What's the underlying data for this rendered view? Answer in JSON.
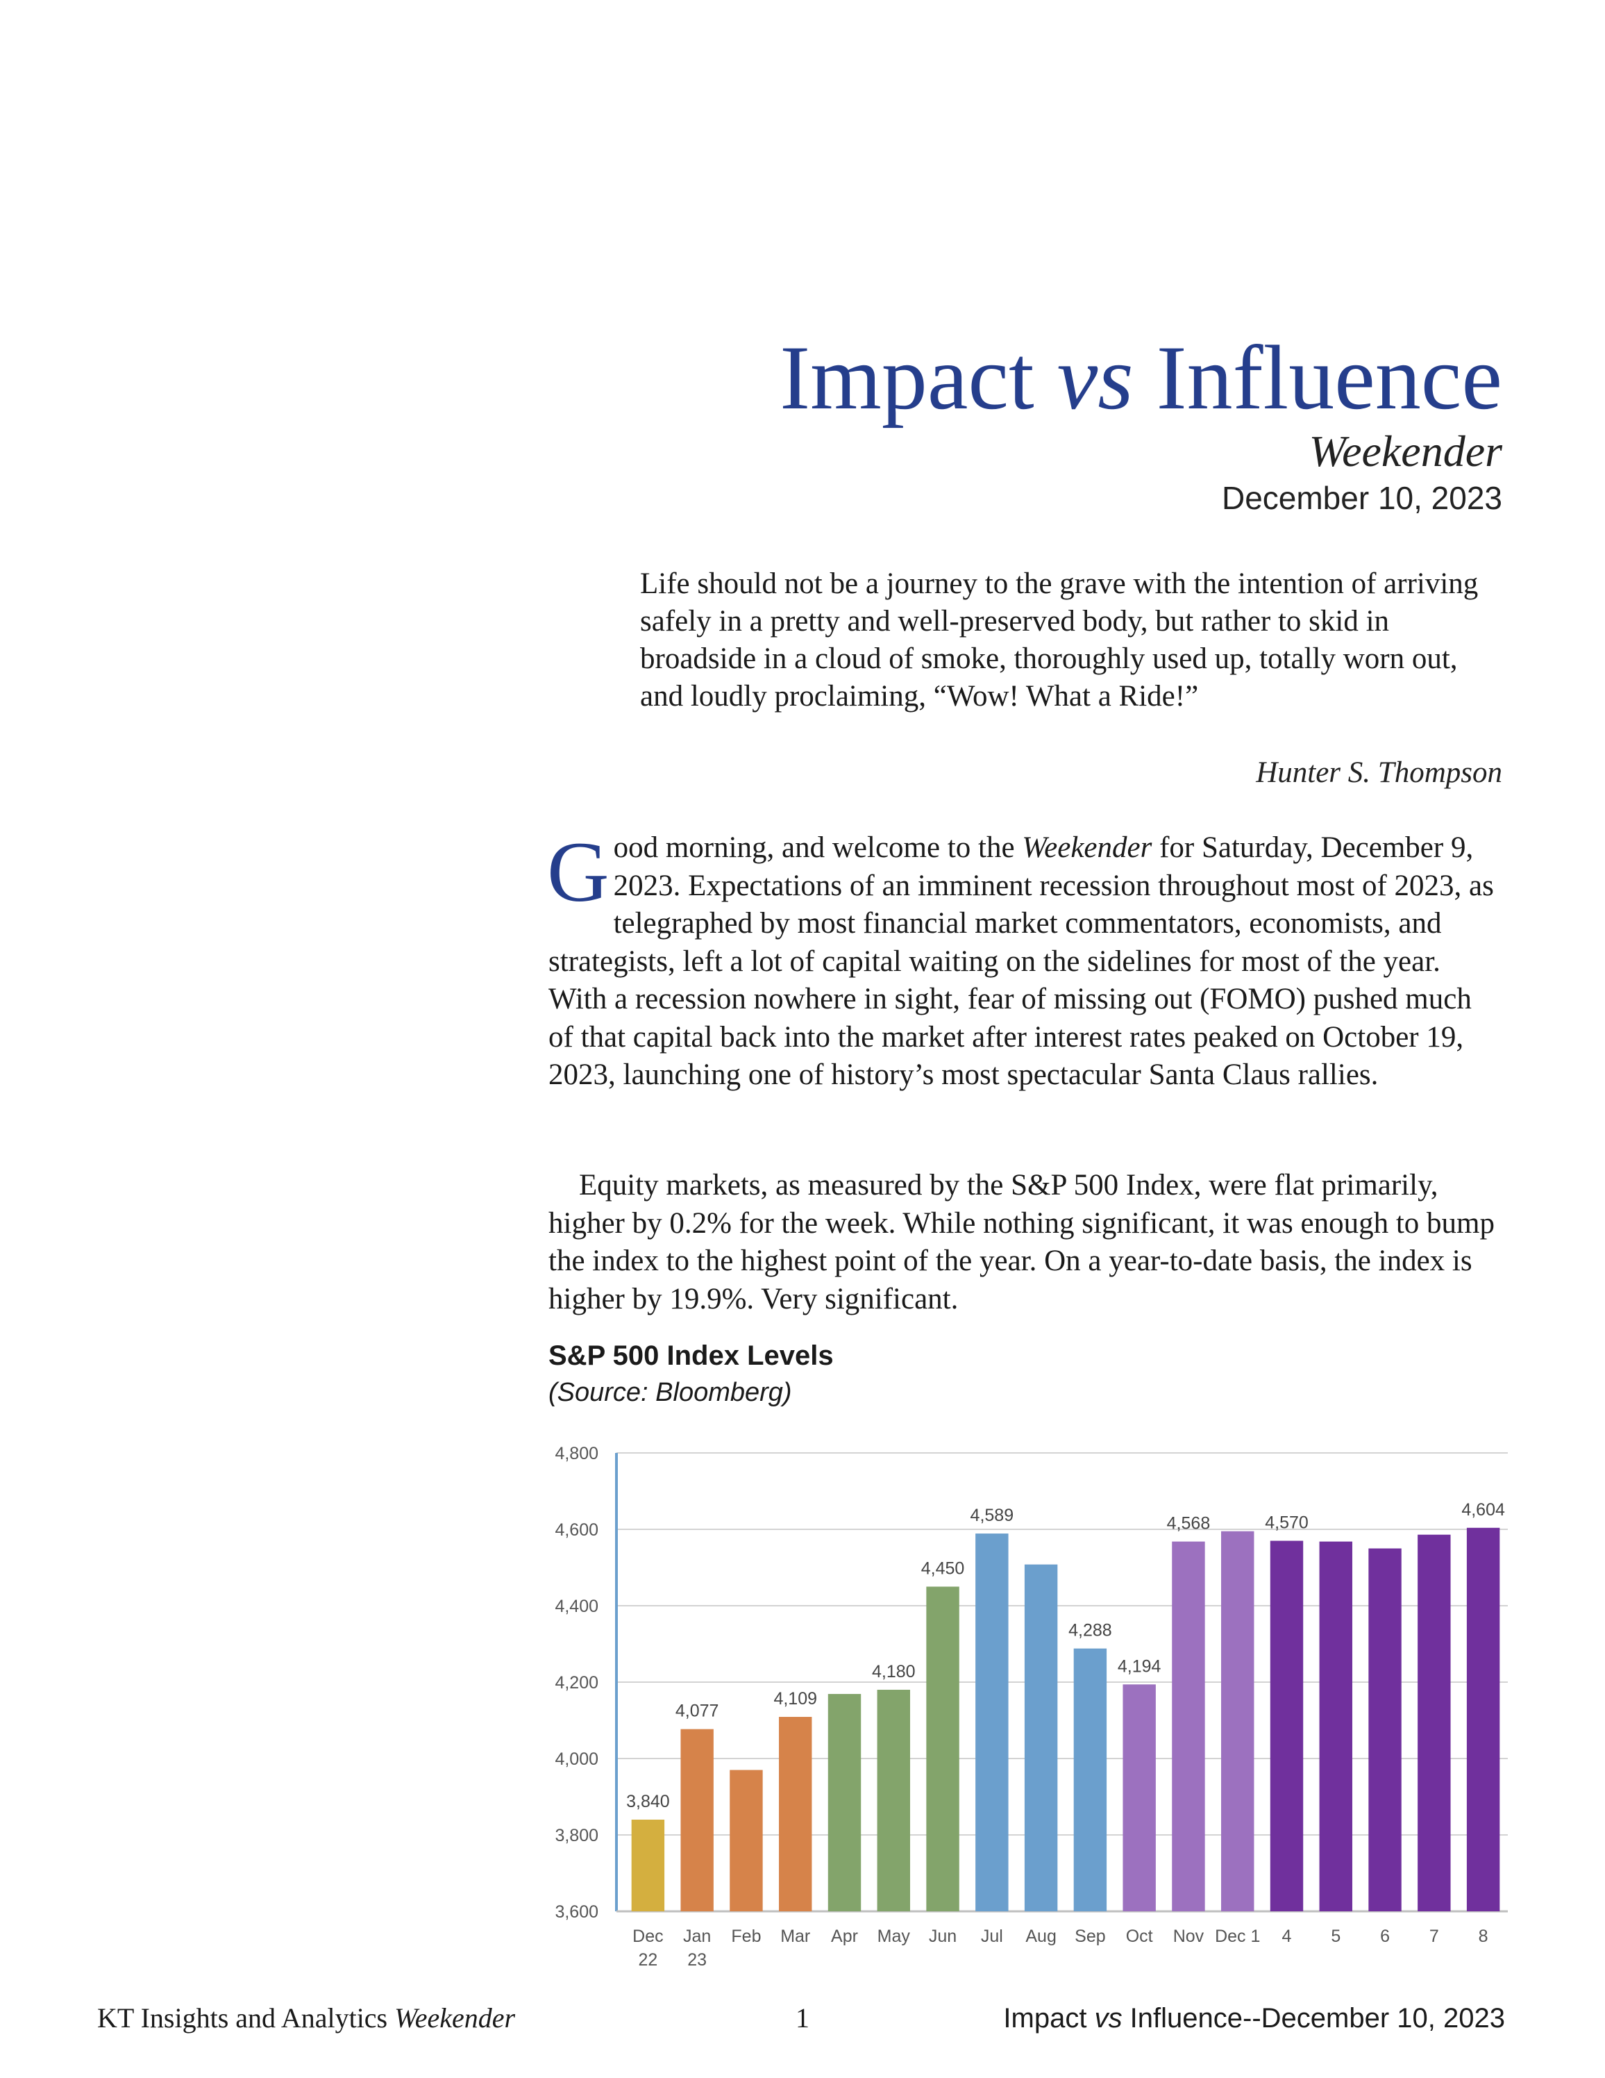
{
  "header": {
    "title_part1": "Impact ",
    "title_vs": "vs",
    "title_part2": " Influence",
    "subtitle": "Weekender",
    "date": "December 10, 2023"
  },
  "quote": {
    "text": "Life should not be a journey to the grave with the intention of arriving safely in a pretty and well-preserved body, but rather to skid in broadside in a cloud of smoke, thoroughly used up, totally worn out, and loudly proclaiming, “Wow! What a Ride!”",
    "attribution": "Hunter S. Thompson"
  },
  "body": {
    "p1_dropcap": "G",
    "p1_lead": "ood morning, and welcome to the ",
    "p1_em": "Weekender",
    "p1_rest": " for Saturday, December 9, 2023. Expectations of an imminent recession throughout most of 2023, as telegraphed by most financial market commentators, economists, and strategists, left a lot of capital waiting on the sidelines for most of the year. With a recession nowhere in sight, fear of missing out (FOMO) pushed much of that capital back into the market after interest rates peaked on October 19, 2023, launching one of history’s most spectacular Santa Claus rallies.",
    "p2": "Equity markets, as measured by the S&P 500 Index, were flat primarily, higher by 0.2% for the week. While nothing significant, it was enough to bump the index to the highest point of the year. On a year-to-date basis, the index is higher by 19.9%. Very significant."
  },
  "chart_data": {
    "type": "bar",
    "title": "S&P 500 Index Levels",
    "subtitle": "(Source: Bloomberg)",
    "categories": [
      "Dec 22",
      "Jan 23",
      "Feb",
      "Mar",
      "Apr",
      "May",
      "Jun",
      "Jul",
      "Aug",
      "Sep",
      "Oct",
      "Nov",
      "Dec 1",
      "4",
      "5",
      "6",
      "7",
      "8"
    ],
    "category_lines": [
      [
        "Dec",
        "22"
      ],
      [
        "Jan",
        "23"
      ],
      [
        "Feb"
      ],
      [
        "Mar"
      ],
      [
        "Apr"
      ],
      [
        "May"
      ],
      [
        "Jun"
      ],
      [
        "Jul"
      ],
      [
        "Aug"
      ],
      [
        "Sep"
      ],
      [
        "Oct"
      ],
      [
        "Nov"
      ],
      [
        "Dec 1"
      ],
      [
        "4"
      ],
      [
        "5"
      ],
      [
        "6"
      ],
      [
        "7"
      ],
      [
        "8"
      ]
    ],
    "values": [
      3840,
      4077,
      3970,
      4109,
      4169,
      4180,
      4450,
      4589,
      4508,
      4288,
      4194,
      4568,
      4595,
      4570,
      4568,
      4550,
      4586,
      4604
    ],
    "data_labels": [
      "3,840",
      "4,077",
      "",
      "4,109",
      "",
      "4,180",
      "4,450",
      "4,589",
      "",
      "4,288",
      "4,194",
      "4,568",
      "",
      "4,570",
      "",
      "",
      "",
      "4,604"
    ],
    "colors": [
      "#d4af3f",
      "#d6834a",
      "#d6834a",
      "#d6834a",
      "#83a46b",
      "#83a46b",
      "#83a46b",
      "#6b9fcd",
      "#6b9fcd",
      "#6b9fcd",
      "#9c71bf",
      "#9c71bf",
      "#9c71bf",
      "#70309d",
      "#70309d",
      "#70309d",
      "#70309d",
      "#70309d"
    ],
    "ylim": [
      3600,
      4800
    ],
    "yticks": [
      3600,
      3800,
      4000,
      4200,
      4400,
      4600,
      4800
    ],
    "ytick_labels": [
      "3,600",
      "3,800",
      "4,000",
      "4,200",
      "4,400",
      "4,600",
      "4,800"
    ],
    "grid": true
  },
  "footer": {
    "left": "KT Insights and Analytics ",
    "left_em": "Weekender",
    "page": "1",
    "right_part1": "Impact ",
    "right_vs": "vs",
    "right_part2": " Influence--December 10, 2023"
  }
}
